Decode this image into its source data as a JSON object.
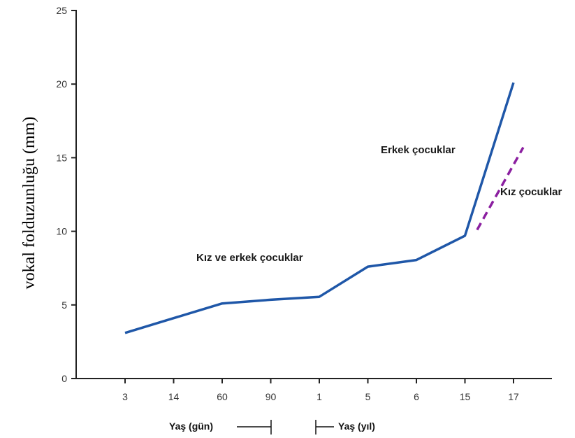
{
  "chart_data": {
    "type": "line",
    "title": "",
    "ylabel": "vokal folduzunluğu (mm)",
    "categories": [
      "3",
      "14",
      "60",
      "90",
      "1",
      "5",
      "6",
      "15",
      "17"
    ],
    "ylim": [
      0,
      25
    ],
    "yticks": [
      0,
      5,
      10,
      15,
      20,
      25
    ],
    "series": [
      {
        "color": "#1f57a8",
        "style": "solid",
        "values": [
          3.1,
          4.1,
          5.1,
          5.35,
          5.55,
          7.6,
          8.05,
          9.7,
          20.1
        ]
      },
      {
        "color": "#8b1fa0",
        "style": "dashed",
        "points": [
          [
            7.25,
            10.1
          ],
          [
            8.2,
            15.7
          ]
        ]
      }
    ],
    "annotations": [
      {
        "text": "Kız ve erkek çocuklar"
      },
      {
        "text": "Erkek çocuklar"
      },
      {
        "text": "Kız çocuklar"
      }
    ],
    "x_groups": [
      {
        "label": "Yaş (gün)"
      },
      {
        "label": "Yaş (yıl)"
      }
    ],
    "grid": false
  }
}
